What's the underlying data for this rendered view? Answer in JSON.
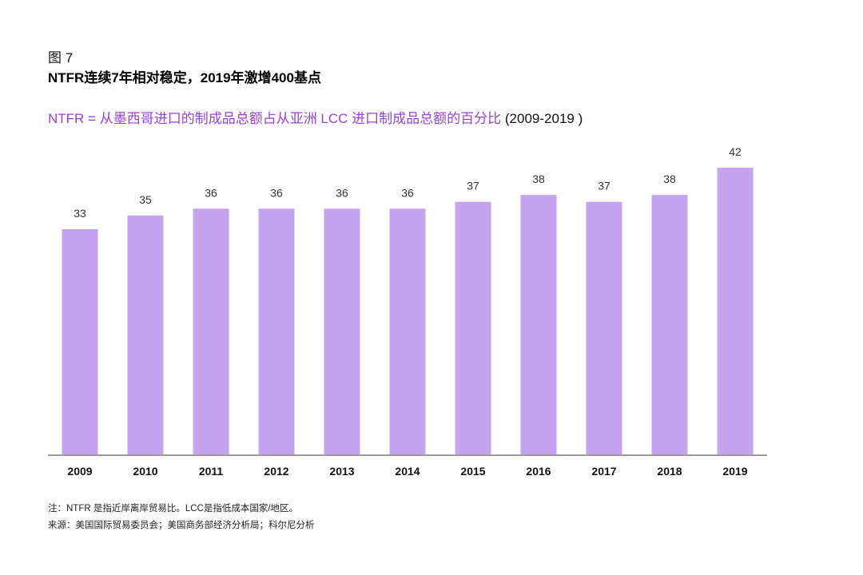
{
  "figure": {
    "label": "图 7",
    "title": "NTFR连续7年相对稳定，2019年激增400基点",
    "subtitle": "NTFR = 从墨西哥进口的制成品总额占从亚洲 LCC 进口制成品总额的百分比",
    "subtitle_range": "(2009-2019 )"
  },
  "notes": {
    "note": "注：NTFR 是指近岸离岸贸易比。LCC是指低成本国家/地区。",
    "source": "来源：美国国际贸易委员会；美国商务部经济分析局；科尔尼分析"
  },
  "chart_data": {
    "type": "bar",
    "categories": [
      "2009",
      "2010",
      "2011",
      "2012",
      "2013",
      "2014",
      "2015",
      "2016",
      "2017",
      "2018",
      "2019"
    ],
    "values": [
      33,
      35,
      36,
      36,
      36,
      36,
      37,
      38,
      37,
      38,
      42
    ],
    "data_labels": [
      "33",
      "35",
      "36",
      "36",
      "36",
      "36",
      "37",
      "38",
      "37",
      "38",
      "42"
    ],
    "ylim": [
      0,
      42
    ],
    "grid": false,
    "legend": "none",
    "colors": {
      "bar": "#c5a3ef",
      "axis": "#9a9a9a",
      "label": "#333333",
      "category": "#111111"
    }
  }
}
